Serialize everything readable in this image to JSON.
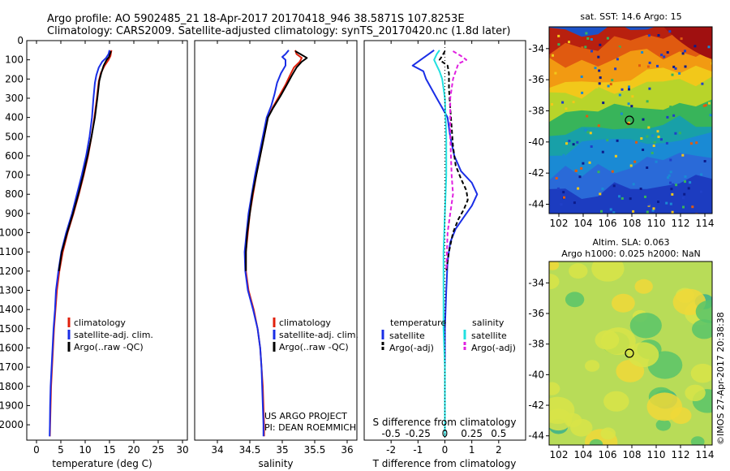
{
  "header": {
    "line1": "Argo profile: AO 5902485_21 18-Apr-2017 20170418_946 38.5871S 107.8253E",
    "line2": "Climatology: CARS2009. Satellite-adjusted climatology: synTS_20170420.nc (1.8d later)"
  },
  "project": {
    "line1": "US ARGO PROJECT",
    "line2": "PI: DEAN ROEMMICH"
  },
  "stamp": "©IMOS 27-Apr-2017 20:38:38",
  "colors": {
    "climatology": "#e0200c",
    "satellite": "#1a2ee6",
    "argo": "#000000",
    "salinity_satellite": "#22e0e0",
    "salinity_argo": "#e020e0"
  },
  "chart_data": [
    {
      "type": "line",
      "xlabel": "temperature (deg C)",
      "ylabel": "",
      "xlim": [
        -2,
        31
      ],
      "ylim": [
        0,
        2080
      ],
      "xticks": [
        0,
        5,
        10,
        15,
        20,
        25,
        30
      ],
      "yticks": [
        0,
        100,
        200,
        300,
        400,
        500,
        600,
        700,
        800,
        900,
        1000,
        1100,
        1200,
        1300,
        1400,
        1500,
        1600,
        1700,
        1800,
        1900,
        2000
      ],
      "legend": [
        "climatology",
        "satellite-adj. clim.",
        "Argo(..raw -QC)"
      ],
      "series": [
        {
          "name": "climatology",
          "color": "#e0200c",
          "points": [
            [
              15.4,
              50
            ],
            [
              15.2,
              80
            ],
            [
              14.8,
              100
            ],
            [
              14.0,
              130
            ],
            [
              13.2,
              170
            ],
            [
              12.8,
              210
            ],
            [
              12.4,
              300
            ],
            [
              11.9,
              400
            ],
            [
              11.3,
              500
            ],
            [
              10.6,
              600
            ],
            [
              9.7,
              700
            ],
            [
              8.7,
              800
            ],
            [
              7.6,
              900
            ],
            [
              6.4,
              1000
            ],
            [
              5.4,
              1100
            ],
            [
              4.7,
              1200
            ],
            [
              4.2,
              1300
            ],
            [
              3.9,
              1400
            ],
            [
              3.6,
              1500
            ],
            [
              3.4,
              1600
            ],
            [
              3.2,
              1700
            ],
            [
              3.0,
              1800
            ],
            [
              2.9,
              1900
            ],
            [
              2.8,
              2000
            ],
            [
              2.75,
              2060
            ]
          ]
        },
        {
          "name": "satellite-adj. clim.",
          "color": "#1a2ee6",
          "points": [
            [
              15.0,
              50
            ],
            [
              14.8,
              70
            ],
            [
              14.3,
              90
            ],
            [
              13.5,
              110
            ],
            [
              12.8,
              140
            ],
            [
              12.3,
              180
            ],
            [
              12.0,
              220
            ],
            [
              11.7,
              300
            ],
            [
              11.4,
              400
            ],
            [
              10.9,
              500
            ],
            [
              10.2,
              600
            ],
            [
              9.3,
              700
            ],
            [
              8.3,
              800
            ],
            [
              7.3,
              900
            ],
            [
              6.1,
              1000
            ],
            [
              5.1,
              1100
            ],
            [
              4.5,
              1200
            ],
            [
              4.0,
              1300
            ],
            [
              3.8,
              1400
            ],
            [
              3.5,
              1500
            ],
            [
              3.3,
              1600
            ],
            [
              3.1,
              1700
            ],
            [
              2.9,
              1800
            ],
            [
              2.8,
              1900
            ],
            [
              2.75,
              2000
            ],
            [
              2.7,
              2060
            ]
          ]
        },
        {
          "name": "Argo(..raw -QC)",
          "color": "#000000",
          "points": [
            [
              15.3,
              55
            ],
            [
              15.1,
              70
            ],
            [
              14.9,
              85
            ],
            [
              14.4,
              100
            ],
            [
              13.8,
              130
            ],
            [
              13.3,
              170
            ],
            [
              12.9,
              210
            ],
            [
              12.5,
              300
            ],
            [
              12.0,
              400
            ],
            [
              11.3,
              500
            ],
            [
              10.5,
              600
            ],
            [
              9.6,
              700
            ],
            [
              8.6,
              800
            ],
            [
              7.5,
              900
            ],
            [
              6.3,
              1000
            ],
            [
              5.2,
              1100
            ],
            [
              4.6,
              1200
            ]
          ]
        }
      ]
    },
    {
      "type": "line",
      "xlabel": "salinity",
      "ylabel": "",
      "xlim": [
        33.65,
        36.15
      ],
      "ylim": [
        0,
        2080
      ],
      "xticks": [
        34,
        34.5,
        35,
        35.5,
        36
      ],
      "legend": [
        "climatology",
        "satellite-adj. clim.",
        "Argo(..raw -QC)"
      ],
      "series": [
        {
          "name": "climatology",
          "color": "#e0200c",
          "points": [
            [
              35.2,
              50
            ],
            [
              35.22,
              70
            ],
            [
              35.3,
              90
            ],
            [
              35.27,
              110
            ],
            [
              35.18,
              140
            ],
            [
              35.12,
              180
            ],
            [
              35.05,
              230
            ],
            [
              34.95,
              290
            ],
            [
              34.85,
              350
            ],
            [
              34.78,
              400
            ],
            [
              34.72,
              500
            ],
            [
              34.66,
              600
            ],
            [
              34.6,
              700
            ],
            [
              34.55,
              800
            ],
            [
              34.5,
              900
            ],
            [
              34.47,
              1000
            ],
            [
              34.44,
              1100
            ],
            [
              34.44,
              1200
            ],
            [
              34.48,
              1300
            ],
            [
              34.56,
              1400
            ],
            [
              34.62,
              1500
            ],
            [
              34.66,
              1600
            ],
            [
              34.68,
              1700
            ],
            [
              34.7,
              1800
            ],
            [
              34.71,
              1900
            ],
            [
              34.72,
              2000
            ],
            [
              34.72,
              2060
            ]
          ]
        },
        {
          "name": "satellite-adj. clim.",
          "color": "#1a2ee6",
          "points": [
            [
              35.1,
              50
            ],
            [
              35.05,
              70
            ],
            [
              35.0,
              85
            ],
            [
              35.05,
              100
            ],
            [
              35.05,
              130
            ],
            [
              34.98,
              170
            ],
            [
              34.92,
              220
            ],
            [
              34.88,
              280
            ],
            [
              34.83,
              340
            ],
            [
              34.76,
              400
            ],
            [
              34.7,
              500
            ],
            [
              34.64,
              600
            ],
            [
              34.58,
              700
            ],
            [
              34.53,
              800
            ],
            [
              34.48,
              900
            ],
            [
              34.45,
              1000
            ],
            [
              34.42,
              1100
            ],
            [
              34.43,
              1200
            ],
            [
              34.47,
              1300
            ],
            [
              34.55,
              1400
            ],
            [
              34.62,
              1500
            ],
            [
              34.66,
              1600
            ],
            [
              34.68,
              1700
            ],
            [
              34.69,
              1800
            ],
            [
              34.7,
              1900
            ],
            [
              34.71,
              2000
            ],
            [
              34.71,
              2060
            ]
          ]
        },
        {
          "name": "Argo(..raw -QC)",
          "color": "#000000",
          "points": [
            [
              35.2,
              55
            ],
            [
              35.28,
              70
            ],
            [
              35.38,
              90
            ],
            [
              35.3,
              110
            ],
            [
              35.22,
              140
            ],
            [
              35.15,
              180
            ],
            [
              35.07,
              230
            ],
            [
              34.97,
              290
            ],
            [
              34.86,
              350
            ],
            [
              34.78,
              400
            ],
            [
              34.72,
              500
            ],
            [
              34.66,
              600
            ],
            [
              34.6,
              700
            ],
            [
              34.54,
              800
            ],
            [
              34.5,
              900
            ],
            [
              34.46,
              1000
            ],
            [
              34.44,
              1100
            ],
            [
              34.44,
              1200
            ]
          ]
        }
      ]
    },
    {
      "type": "line",
      "xlabel": "T difference from climatology",
      "xlabel_top": "S difference from climatology",
      "ylabel": "",
      "xlim": [
        -3.0,
        3.0
      ],
      "ylim": [
        0,
        2080
      ],
      "xticks": [
        -2,
        -1,
        0,
        1,
        2
      ],
      "xticks_top": [
        "-0.5",
        "-0.25",
        "0",
        "0.25",
        "0.5"
      ],
      "legend_headers": [
        "temperature",
        "salinity"
      ],
      "legend": [
        "satellite",
        "Argo(-adj)",
        "satellite",
        "Argo(-adj)"
      ],
      "series": [
        {
          "name": "satellite",
          "color": "#1a2ee6",
          "points": [
            [
              -0.4,
              50
            ],
            [
              -0.6,
              70
            ],
            [
              -0.9,
              100
            ],
            [
              -1.2,
              130
            ],
            [
              -0.8,
              160
            ],
            [
              -0.7,
              200
            ],
            [
              -0.5,
              250
            ],
            [
              -0.3,
              300
            ],
            [
              -0.1,
              350
            ],
            [
              0.1,
              400
            ],
            [
              0.2,
              500
            ],
            [
              0.35,
              600
            ],
            [
              0.6,
              680
            ],
            [
              1.0,
              740
            ],
            [
              1.2,
              800
            ],
            [
              1.0,
              860
            ],
            [
              0.7,
              920
            ],
            [
              0.4,
              980
            ],
            [
              0.2,
              1050
            ],
            [
              0.1,
              1150
            ],
            [
              0.05,
              1300
            ],
            [
              0.0,
              1500
            ],
            [
              0.0,
              2060
            ]
          ]
        },
        {
          "name": "Argo(-adj)",
          "color": "#000000",
          "dash": true,
          "points": [
            [
              0.0,
              55
            ],
            [
              -0.1,
              80
            ],
            [
              -0.2,
              100
            ],
            [
              0.1,
              130
            ],
            [
              0.15,
              170
            ],
            [
              0.15,
              250
            ],
            [
              0.2,
              350
            ],
            [
              0.25,
              450
            ],
            [
              0.3,
              550
            ],
            [
              0.4,
              650
            ],
            [
              0.6,
              720
            ],
            [
              0.8,
              780
            ],
            [
              0.85,
              830
            ],
            [
              0.7,
              880
            ],
            [
              0.5,
              930
            ],
            [
              0.3,
              1000
            ],
            [
              0.15,
              1100
            ],
            [
              0.05,
              1200
            ]
          ]
        },
        {
          "name": "satellite",
          "color": "#22e0e0",
          "points": [
            [
              -0.2,
              50
            ],
            [
              -0.3,
              70
            ],
            [
              -0.4,
              100
            ],
            [
              -0.3,
              130
            ],
            [
              -0.2,
              160
            ],
            [
              -0.1,
              200
            ],
            [
              0.0,
              300
            ],
            [
              0.05,
              500
            ],
            [
              0.05,
              700
            ],
            [
              0.0,
              900
            ],
            [
              -0.05,
              1100
            ],
            [
              -0.05,
              1300
            ],
            [
              -0.05,
              1500
            ],
            [
              0.0,
              1700
            ],
            [
              0.0,
              2060
            ]
          ]
        },
        {
          "name": "Argo(-adj)",
          "color": "#e020e0",
          "dash": true,
          "points": [
            [
              0.3,
              55
            ],
            [
              0.6,
              80
            ],
            [
              0.8,
              100
            ],
            [
              0.5,
              120
            ],
            [
              0.4,
              160
            ],
            [
              0.3,
              200
            ],
            [
              0.2,
              300
            ],
            [
              0.2,
              500
            ],
            [
              0.25,
              700
            ],
            [
              0.3,
              800
            ],
            [
              0.2,
              900
            ],
            [
              0.1,
              1000
            ],
            [
              0.05,
              1200
            ]
          ]
        }
      ]
    },
    {
      "type": "heatmap",
      "title": "sat. SST: 14.6 Argo: 15",
      "xlim": [
        101.2,
        114.6
      ],
      "ylim": [
        -44.6,
        -32.6
      ],
      "xticks": [
        102,
        104,
        106,
        108,
        110,
        112,
        114
      ],
      "yticks": [
        -34,
        -36,
        -38,
        -40,
        -42,
        -44
      ],
      "marker": [
        107.8,
        -38.6
      ]
    },
    {
      "type": "heatmap",
      "title": "Altim. SLA: 0.063",
      "subtitle": "Argo h1000: 0.025 h2000: NaN",
      "xlim": [
        101.2,
        114.6
      ],
      "ylim": [
        -44.6,
        -32.6
      ],
      "xticks": [
        102,
        104,
        106,
        108,
        110,
        112,
        114
      ],
      "yticks": [
        -34,
        -36,
        -38,
        -40,
        -42,
        -44
      ],
      "marker": [
        107.8,
        -38.6
      ]
    }
  ]
}
